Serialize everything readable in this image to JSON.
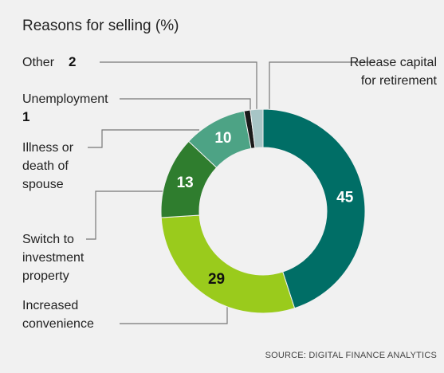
{
  "chart_data": {
    "type": "donut",
    "title": "Reasons for selling (%)",
    "categories": [
      "Release capital for retirement",
      "Increased convenience",
      "Switch to investment property",
      "Illness or death of spouse",
      "Unemployment",
      "Other"
    ],
    "values": [
      45,
      29,
      13,
      10,
      1,
      2
    ],
    "colors": [
      "#006e66",
      "#9acb1c",
      "#2f7d2e",
      "#4da385",
      "#1a1a1a",
      "#a7c5c6"
    ],
    "value_label_colors": [
      "#ffffff",
      "#111111",
      "#ffffff",
      "#ffffff",
      "#111111",
      "#111111"
    ],
    "source": "SOURCE: DIGITAL FINANCE ANALYTICS"
  }
}
